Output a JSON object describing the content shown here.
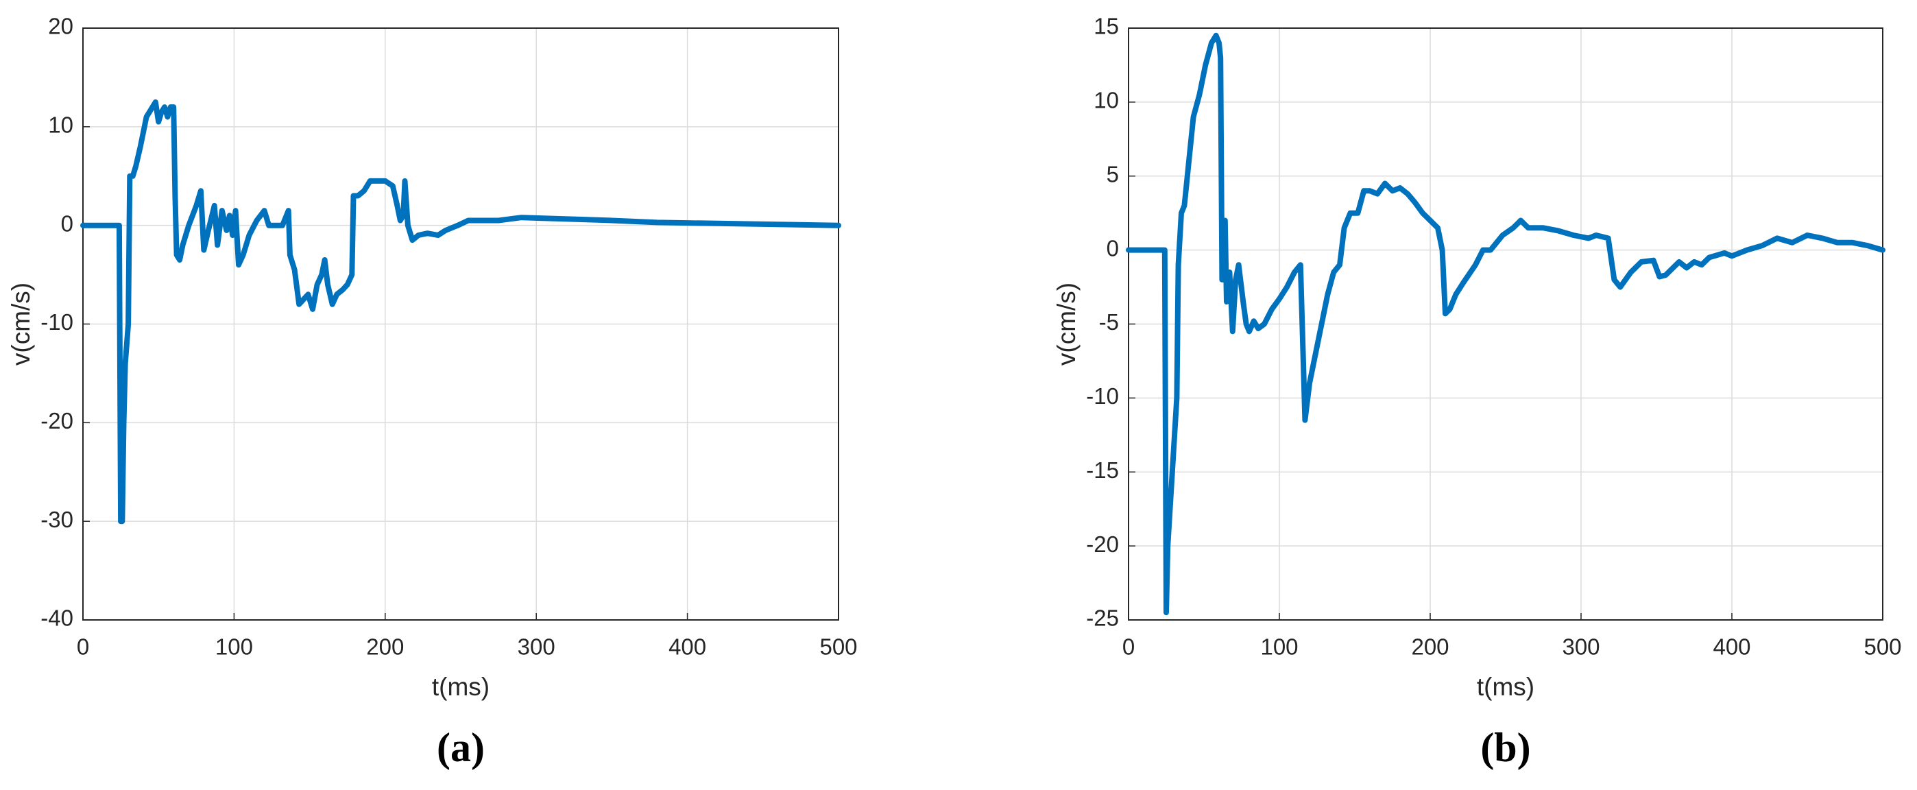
{
  "chart_data": [
    {
      "type": "line",
      "caption": "(a)",
      "xlabel": "t(ms)",
      "ylabel": "v(cm/s)",
      "xlim": [
        0,
        500
      ],
      "xticks": [
        0,
        100,
        200,
        300,
        400,
        500
      ],
      "ylim": [
        -40,
        20
      ],
      "yticks": [
        -40,
        -30,
        -20,
        -10,
        0,
        10,
        20
      ],
      "grid": true,
      "series": [
        {
          "color": "#0072bd",
          "x": [
            0,
            22,
            24,
            25,
            26,
            27,
            28,
            30,
            31,
            33,
            35,
            38,
            42,
            46,
            48,
            50,
            52,
            54,
            56,
            58,
            60,
            61,
            62,
            64,
            66,
            70,
            75,
            78,
            80,
            83,
            87,
            89,
            92,
            95,
            97,
            99,
            101,
            103,
            106,
            110,
            115,
            120,
            123,
            128,
            132,
            136,
            137,
            140,
            143,
            146,
            149,
            152,
            155,
            158,
            160,
            162,
            165,
            168,
            172,
            175,
            178,
            179,
            182,
            186,
            190,
            195,
            200,
            205,
            208,
            210,
            212,
            213,
            215,
            218,
            222,
            228,
            235,
            240,
            248,
            255,
            265,
            275,
            290,
            310,
            330,
            350,
            380,
            420,
            460,
            500
          ],
          "values": [
            0,
            0,
            0,
            -30,
            -30,
            -20,
            -14,
            -10,
            5,
            5,
            6,
            8,
            11,
            12,
            12.5,
            10.5,
            11.5,
            12,
            11,
            12,
            12,
            3,
            -3,
            -3.5,
            -2,
            0,
            2,
            3.5,
            -2.5,
            -0.5,
            2,
            -2,
            1.5,
            -0.5,
            1,
            -1,
            1.5,
            -4,
            -3,
            -1,
            0.5,
            1.5,
            0,
            0,
            0,
            1.5,
            -3,
            -4.5,
            -8,
            -7.5,
            -7,
            -8.5,
            -6,
            -5,
            -3.5,
            -6,
            -8,
            -7,
            -6.5,
            -6,
            -5,
            3,
            3,
            3.5,
            4.5,
            4.5,
            4.5,
            4,
            2,
            0.5,
            1,
            4.5,
            0,
            -1.5,
            -1,
            -0.8,
            -1,
            -0.5,
            0,
            0.5,
            0.5,
            0.5,
            0.8,
            0.7,
            0.6,
            0.5,
            0.3,
            0.2,
            0.1,
            0
          ]
        }
      ]
    },
    {
      "type": "line",
      "caption": "(b)",
      "xlabel": "t(ms)",
      "ylabel": "v(cm/s)",
      "xlim": [
        0,
        500
      ],
      "xticks": [
        0,
        100,
        200,
        300,
        400,
        500
      ],
      "ylim": [
        -25,
        15
      ],
      "yticks": [
        -25,
        -20,
        -15,
        -10,
        -5,
        0,
        5,
        10,
        15
      ],
      "grid": true,
      "series": [
        {
          "color": "#0072bd",
          "x": [
            0,
            22,
            24,
            25,
            26,
            29,
            32,
            33,
            35,
            37,
            40,
            43,
            47,
            51,
            55,
            58,
            60,
            61,
            62,
            63,
            64,
            65,
            67,
            69,
            71,
            73,
            76,
            78,
            80,
            83,
            86,
            90,
            95,
            100,
            105,
            110,
            114,
            117,
            120,
            124,
            128,
            132,
            136,
            140,
            143,
            147,
            152,
            156,
            160,
            165,
            170,
            175,
            180,
            185,
            190,
            195,
            200,
            205,
            208,
            210,
            213,
            217,
            222,
            230,
            235,
            240,
            248,
            255,
            260,
            265,
            275,
            285,
            295,
            305,
            310,
            318,
            322,
            326,
            333,
            340,
            348,
            352,
            356,
            365,
            370,
            375,
            380,
            385,
            395,
            400,
            410,
            420,
            430,
            440,
            450,
            460,
            470,
            480,
            490,
            500
          ],
          "values": [
            0,
            0,
            0,
            -24.5,
            -20,
            -15,
            -10,
            -1,
            2.5,
            3,
            6,
            9,
            10.5,
            12.5,
            14,
            14.5,
            14,
            13,
            -2,
            -2,
            2,
            -3.5,
            -1.5,
            -5.5,
            -2,
            -1,
            -3.5,
            -5,
            -5.5,
            -4.8,
            -5.3,
            -5,
            -4,
            -3.3,
            -2.5,
            -1.5,
            -1,
            -11.5,
            -9,
            -7,
            -5,
            -3,
            -1.5,
            -1,
            1.5,
            2.5,
            2.5,
            4,
            4,
            3.8,
            4.5,
            4,
            4.2,
            3.8,
            3.2,
            2.5,
            2,
            1.5,
            0,
            -4.3,
            -4,
            -3,
            -2.2,
            -1,
            0,
            0,
            1,
            1.5,
            2,
            1.5,
            1.5,
            1.3,
            1,
            0.8,
            1,
            0.8,
            -2,
            -2.5,
            -1.5,
            -0.8,
            -0.7,
            -1.8,
            -1.7,
            -0.8,
            -1.2,
            -0.8,
            -1,
            -0.5,
            -0.2,
            -0.4,
            0,
            0.3,
            0.8,
            0.5,
            1,
            0.8,
            0.5,
            0.5,
            0.3,
            0
          ]
        }
      ]
    }
  ]
}
